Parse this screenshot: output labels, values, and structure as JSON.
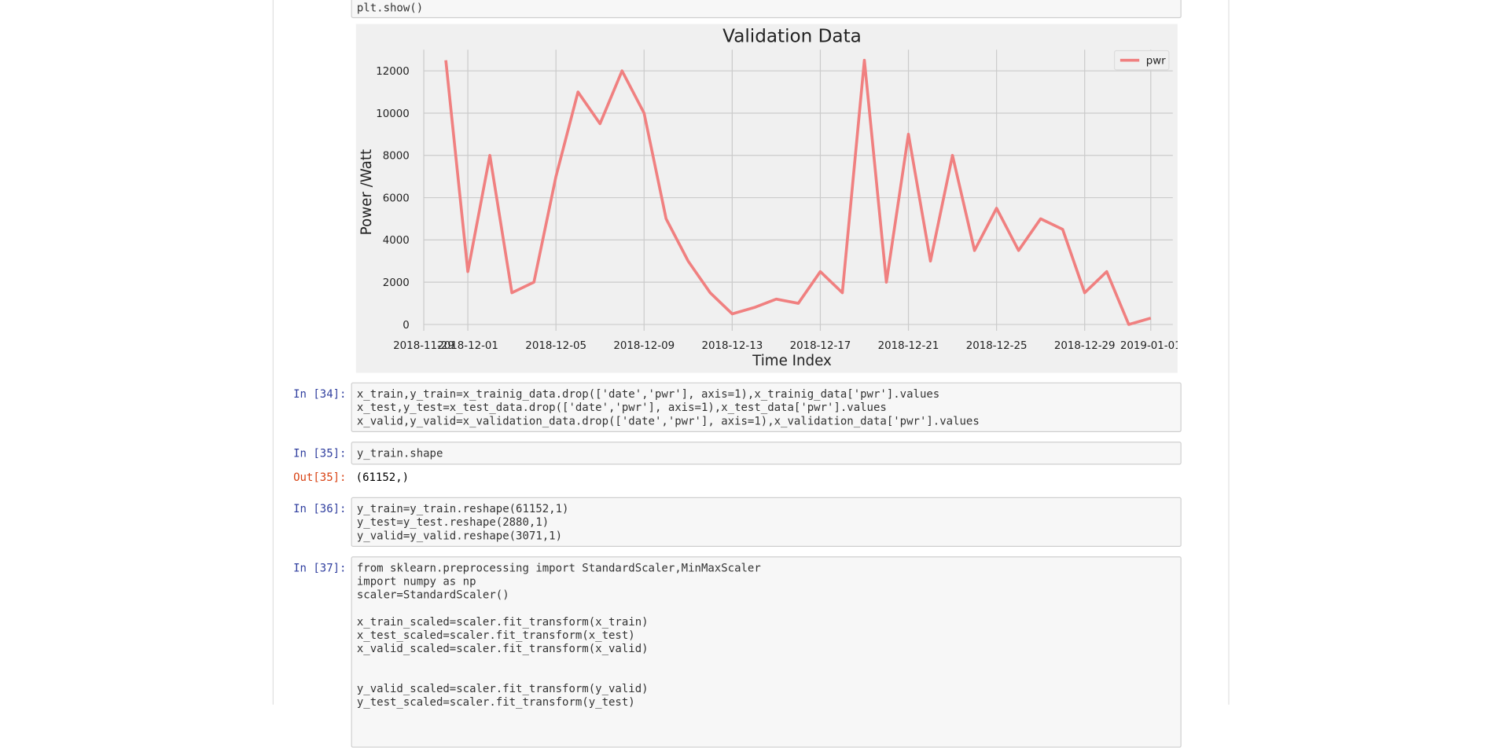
{
  "notebook": {
    "top_cell": {
      "source": [
        "plt.show()"
      ]
    },
    "cells": [
      {
        "prompt": "In [34]:",
        "blocks": [
          [
            "x_train,y_train=x_trainig_data.drop(['date','pwr'], axis=1),x_trainig_data['pwr'].values",
            "x_test,y_test=x_test_data.drop(['date','pwr'], axis=1),x_test_data['pwr'].values",
            "x_valid,y_valid=x_validation_data.drop(['date','pwr'], axis=1),x_validation_data['pwr'].values"
          ]
        ]
      },
      {
        "prompt": "In [35]:",
        "blocks": [
          [
            "y_train.shape"
          ]
        ],
        "out_prompt": "Out[35]:",
        "output": "(61152,)"
      },
      {
        "prompt": "In [36]:",
        "blocks": [
          [
            "y_train=y_train.reshape(61152,1)",
            "y_test=y_test.reshape(2880,1)",
            "y_valid=y_valid.reshape(3071,1)"
          ]
        ]
      },
      {
        "prompt": "In [37]:",
        "blocks": [
          [
            "from sklearn.preprocessing import StandardScaler,MinMaxScaler",
            "import numpy as np",
            "scaler=StandardScaler()"
          ],
          [
            "x_train_scaled=scaler.fit_transform(x_train)",
            "x_test_scaled=scaler.fit_transform(x_test)",
            "x_valid_scaled=scaler.fit_transform(x_valid)"
          ],
          [
            "y_valid_scaled=scaler.fit_transform(y_valid)",
            "y_test_scaled=scaler.fit_transform(y_test)"
          ]
        ]
      }
    ]
  },
  "chart_data": {
    "type": "line",
    "title": "Validation Data",
    "x_label": "Time Index",
    "y_label": "Power /Watt",
    "x": [
      "2018-11-30",
      "2018-12-01",
      "2018-12-02",
      "2018-12-03",
      "2018-12-04",
      "2018-12-05",
      "2018-12-06",
      "2018-12-07",
      "2018-12-08",
      "2018-12-09",
      "2018-12-10",
      "2018-12-11",
      "2018-12-12",
      "2018-12-13",
      "2018-12-14",
      "2018-12-15",
      "2018-12-16",
      "2018-12-17",
      "2018-12-18",
      "2018-12-19",
      "2018-12-20",
      "2018-12-21",
      "2018-12-22",
      "2018-12-23",
      "2018-12-24",
      "2018-12-25",
      "2018-12-26",
      "2018-12-27",
      "2018-12-28",
      "2018-12-29",
      "2018-12-30",
      "2018-12-31",
      "2019-01-01"
    ],
    "series": [
      {
        "name": "pwr",
        "color": "#f08080",
        "values": [
          12500,
          2500,
          8000,
          1500,
          2000,
          7000,
          11000,
          9500,
          12000,
          10000,
          5000,
          3000,
          1500,
          500,
          800,
          1200,
          1000,
          2500,
          1500,
          12500,
          2000,
          9000,
          3000,
          8000,
          3500,
          5500,
          3500,
          5000,
          4500,
          1500,
          2500,
          0,
          300
        ]
      }
    ],
    "xlim": [
      "2018-11-29",
      "2019-01-02"
    ],
    "xticks": [
      "2018-11-29",
      "2018-12-01",
      "2018-12-05",
      "2018-12-09",
      "2018-12-13",
      "2018-12-17",
      "2018-12-21",
      "2018-12-25",
      "2018-12-29",
      "2019-01-01"
    ],
    "ylim": [
      -300,
      13000
    ],
    "yticks": [
      0,
      2000,
      4000,
      6000,
      8000,
      10000,
      12000
    ],
    "grid": true,
    "legend": "upper right"
  }
}
